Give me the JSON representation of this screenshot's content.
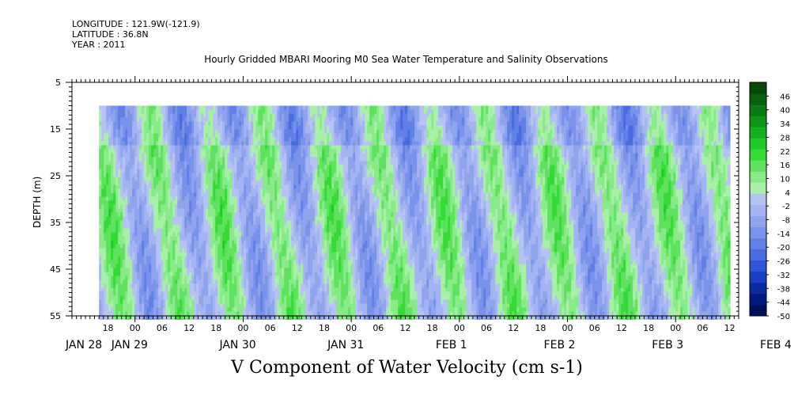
{
  "header": {
    "longitude": "LONGITUDE : 121.9W(-121.9)",
    "latitude": "LATITUDE : 36.8N",
    "year": "YEAR : 2011"
  },
  "chart_data": {
    "type": "heatmap",
    "title": "Hourly Gridded MBARI Mooring M0 Sea Water Temperature and Salinity Observations",
    "xlabel": "V Component of Water Velocity (cm s-1)",
    "ylabel": "DEPTH (m)",
    "x_axis": {
      "unit": "hours since JAN 28 00 (2011)",
      "range_hours": [
        10,
        158
      ],
      "data_start_hours": 16,
      "data_end_hours": 156,
      "hour_tick_labels": [
        "18",
        "00",
        "06",
        "12",
        "18",
        "00",
        "06",
        "12",
        "18",
        "00",
        "06",
        "12",
        "18",
        "00",
        "06",
        "12",
        "18",
        "00",
        "06",
        "12",
        "18",
        "00",
        "06",
        "12",
        "18",
        "00",
        "06",
        "12",
        "18",
        "00",
        "06",
        "12"
      ],
      "hour_tick_positions": [
        18,
        24,
        30,
        36,
        42,
        48,
        54,
        60,
        66,
        72,
        78,
        84,
        90,
        96,
        102,
        108,
        114,
        120,
        126,
        132,
        138,
        144,
        150,
        156,
        162,
        168,
        174,
        180,
        186,
        192,
        198,
        204
      ],
      "day_labels": [
        "JAN 28",
        "JAN 29",
        "JAN 30",
        "JAN 31",
        "FEB  1",
        "FEB  2",
        "FEB  3",
        "FEB  4"
      ],
      "day_label_hours": [
        10,
        24,
        48,
        72,
        96,
        120,
        144,
        168
      ]
    },
    "y_axis": {
      "range": [
        5,
        55
      ],
      "reversed": true,
      "tick_labels": [
        "5",
        "15",
        "25",
        "35",
        "45",
        "55"
      ],
      "tick_values": [
        5,
        15,
        25,
        35,
        45,
        55
      ],
      "data_top_depth": 10
    },
    "colorbar": {
      "labels": [
        "46",
        "40",
        "34",
        "28",
        "22",
        "16",
        "10",
        "4",
        "-2",
        "-8",
        "-14",
        "-20",
        "-26",
        "-32",
        "-38",
        "-44",
        "-50"
      ],
      "min": -50,
      "max": 52,
      "colors_low_to_high": [
        "#000f5a",
        "#001a80",
        "#0a2aa0",
        "#1a3fc4",
        "#2f55d8",
        "#4a6be0",
        "#6180e6",
        "#7a93ea",
        "#90a4ee",
        "#a4b4f2",
        "#b6c2f4",
        "#a8f0a8",
        "#88ea88",
        "#5fe25f",
        "#36da36",
        "#1ccc24",
        "#12b01c",
        "#0e9416",
        "#0b7a12",
        "#085f0e",
        "#064a0a"
      ]
    },
    "pattern_note": "V velocity alternates between positive (green) and negative (blue) roughly every 12 hours, with values mostly between -20 and +20 cm/s"
  }
}
